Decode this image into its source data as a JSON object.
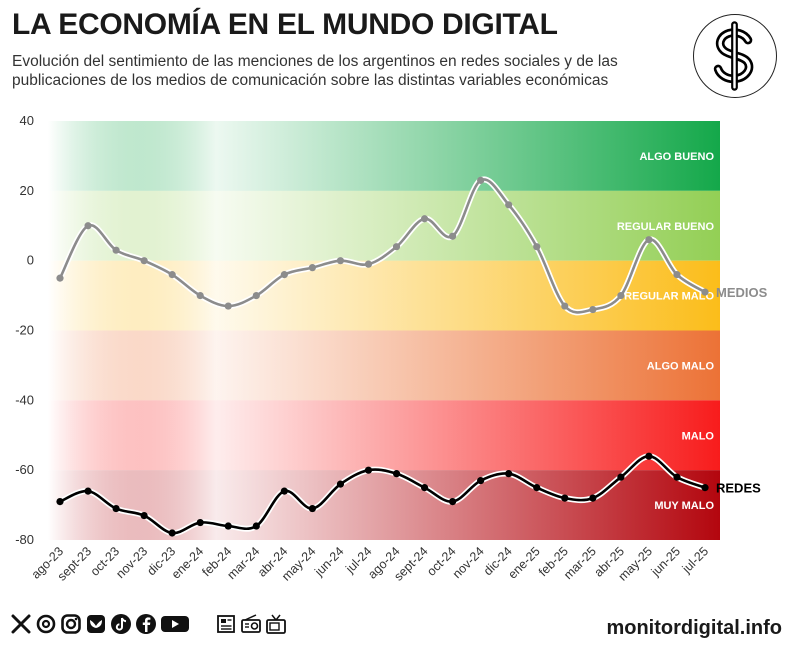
{
  "header": {
    "title": "LA ECONOMÍA EN EL MUNDO DIGITAL",
    "subtitle": "Evolución del sentimiento de las menciones de los argentinos en redes sociales y de las publicaciones de los medios de comunicación sobre las distintas variables económicas"
  },
  "logo": {
    "icon": "dollar-sign-icon"
  },
  "chart_data": {
    "type": "line",
    "title": "LA ECONOMÍA EN EL MUNDO DIGITAL",
    "categories": [
      "ago-23",
      "sept-23",
      "oct-23",
      "nov-23",
      "dic-23",
      "ene-24",
      "feb-24",
      "mar-24",
      "abr-24",
      "may-24",
      "jun-24",
      "jul-24",
      "ago-24",
      "sept-24",
      "oct-24",
      "nov-24",
      "dic-24",
      "ene-25",
      "feb-25",
      "mar-25",
      "abr-25",
      "may-25",
      "jun-25",
      "jul-25"
    ],
    "series": [
      {
        "name": "MEDIOS",
        "color": "#8c8c8c",
        "values": [
          -5,
          10,
          3,
          0,
          -4,
          -10,
          -13,
          -10,
          -4,
          -2,
          0,
          -1,
          4,
          12,
          7,
          23,
          16,
          4,
          -13,
          -14,
          -10,
          6,
          -4,
          -9
        ]
      },
      {
        "name": "REDES",
        "color": "#000000",
        "values": [
          -69,
          -66,
          -71,
          -73,
          -78,
          -75,
          -76,
          -76,
          -66,
          -71,
          -64,
          -60,
          -61,
          -65,
          -69,
          -63,
          -61,
          -65,
          -68,
          -68,
          -62,
          -56,
          -62,
          -65
        ]
      }
    ],
    "ylim": [
      -80,
      40
    ],
    "yticks": [
      "40",
      "20",
      "0",
      "-20",
      "-40",
      "-60",
      "-80"
    ],
    "xlabel": "",
    "ylabel": "",
    "bands": [
      {
        "label": "ALGO BUENO",
        "from": 20,
        "to": 40,
        "color": "#14a84a"
      },
      {
        "label": "REGULAR BUENO",
        "from": 0,
        "to": 20,
        "color": "#93cf55"
      },
      {
        "label": "REGULAR MALO",
        "from": -20,
        "to": 0,
        "color": "#fbbd1a"
      },
      {
        "label": "ALGO MALO",
        "from": -40,
        "to": -20,
        "color": "#ec7236"
      },
      {
        "label": "MALO",
        "from": -60,
        "to": -40,
        "color": "#f81c1c"
      },
      {
        "label": "MUY MALO",
        "from": -80,
        "to": -60,
        "color": "#b3060e"
      }
    ]
  },
  "footer": {
    "social_icons": [
      "x-icon",
      "threads-icon",
      "instagram-icon",
      "bluesky-icon",
      "tiktok-icon",
      "facebook-icon",
      "youtube-icon"
    ],
    "media_icons": [
      "newspaper-icon",
      "radio-icon",
      "tv-icon"
    ],
    "brand": "monitordigital.info"
  }
}
